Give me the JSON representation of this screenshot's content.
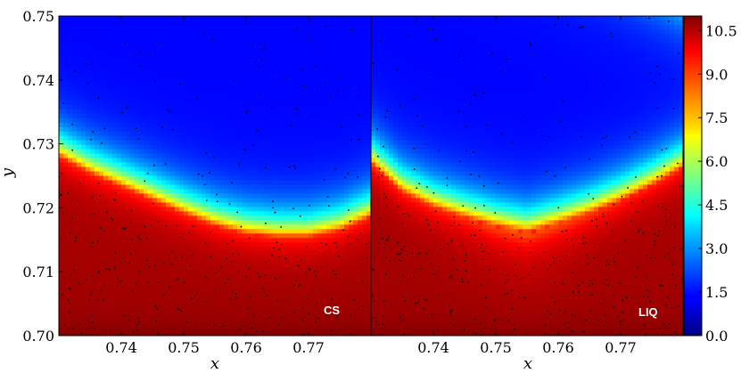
{
  "chart_data": {
    "type": "heatmap",
    "colormap": "jet",
    "grid": false,
    "colorbar": {
      "range": [
        0.0,
        11.0
      ],
      "tick_labels": [
        "0.0",
        "1.5",
        "3.0",
        "4.5",
        "6.0",
        "7.5",
        "9.0",
        "10.5"
      ],
      "tick_values": [
        0.0,
        1.5,
        3.0,
        4.5,
        6.0,
        7.5,
        9.0,
        10.5
      ]
    },
    "y_axis": {
      "label": "y",
      "range": [
        0.7,
        0.75
      ],
      "tick_labels": [
        "0.70",
        "0.71",
        "0.72",
        "0.73",
        "0.74",
        "0.75"
      ],
      "tick_values": [
        0.7,
        0.71,
        0.72,
        0.73,
        0.74,
        0.75
      ]
    },
    "panels": [
      {
        "tag": "CS",
        "x_axis": {
          "label": "x",
          "range": [
            0.73,
            0.78
          ],
          "tick_labels": [
            "0.74",
            "0.75",
            "0.76",
            "0.77"
          ],
          "tick_values": [
            0.74,
            0.75,
            0.76,
            0.77
          ]
        },
        "interface": {
          "x": [
            0.73,
            0.735,
            0.74,
            0.745,
            0.75,
            0.755,
            0.76,
            0.765,
            0.77,
            0.775,
            0.78
          ],
          "y": [
            0.7279,
            0.7253,
            0.7232,
            0.7211,
            0.719,
            0.7171,
            0.7158,
            0.7153,
            0.7153,
            0.7163,
            0.7185
          ]
        }
      },
      {
        "tag": "LIQ",
        "x_axis": {
          "label": "x",
          "range": [
            0.73,
            0.78
          ],
          "tick_labels": [
            "0.74",
            "0.75",
            "0.76",
            "0.77"
          ],
          "tick_values": [
            0.74,
            0.75,
            0.76,
            0.77
          ]
        },
        "interface": {
          "x": [
            0.73,
            0.735,
            0.74,
            0.745,
            0.75,
            0.755,
            0.76,
            0.765,
            0.77,
            0.775,
            0.78
          ],
          "y": [
            0.7268,
            0.7224,
            0.72,
            0.7184,
            0.717,
            0.716,
            0.7174,
            0.719,
            0.721,
            0.7234,
            0.7262
          ]
        }
      }
    ]
  }
}
